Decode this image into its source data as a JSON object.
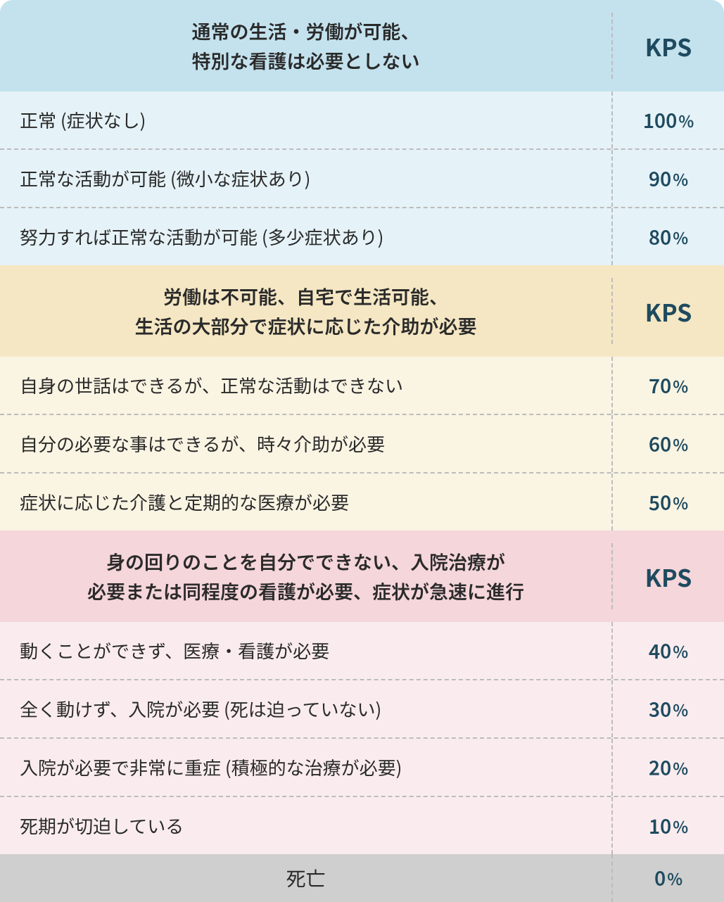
{
  "sections": [
    {
      "header_line1": "通常の生活・労働が可能、",
      "header_line2": "特別な看護は必要としない",
      "kps_label": "KPS",
      "header_bg": "#c4e2ee",
      "row_bg": "#e5f2f7",
      "kps_text_color": "#1e4a5f",
      "rows": [
        {
          "desc": "正常 (症状なし)",
          "value": "100"
        },
        {
          "desc": "正常な活動が可能 (微小な症状あり)",
          "value": "90"
        },
        {
          "desc": "努力すれば正常な活動が可能 (多少症状あり)",
          "value": "80"
        }
      ]
    },
    {
      "header_line1": "労働は不可能、自宅で生活可能、",
      "header_line2": "生活の大部分で症状に応じた介助が必要",
      "kps_label": "KPS",
      "header_bg": "#f5e7c4",
      "row_bg": "#faf4e3",
      "kps_text_color": "#1e4a5f",
      "rows": [
        {
          "desc": "自身の世話はできるが、正常な活動はできない",
          "value": "70"
        },
        {
          "desc": "自分の必要な事はできるが、時々介助が必要",
          "value": "60"
        },
        {
          "desc": "症状に応じた介護と定期的な医療が必要",
          "value": "50"
        }
      ]
    },
    {
      "header_line1": "身の回りのことを自分でできない、入院治療が",
      "header_line2": "必要または同程度の看護が必要、症状が急速に進行",
      "kps_label": "KPS",
      "header_bg": "#f5d6da",
      "row_bg": "#faecee",
      "kps_text_color": "#1e4a5f",
      "rows": [
        {
          "desc": "動くことができず、医療・看護が必要",
          "value": "40"
        },
        {
          "desc": "全く動けず、入院が必要 (死は迫っていない)",
          "value": "30"
        },
        {
          "desc": "入院が必要で非常に重症 (積極的な治療が必要)",
          "value": "20"
        },
        {
          "desc": "死期が切迫している",
          "value": "10"
        }
      ]
    }
  ],
  "death": {
    "label": "死亡",
    "value": "0",
    "bg": "#cfcfcf",
    "kps_text_color": "#1e4a5f"
  },
  "percent_symbol": "%"
}
